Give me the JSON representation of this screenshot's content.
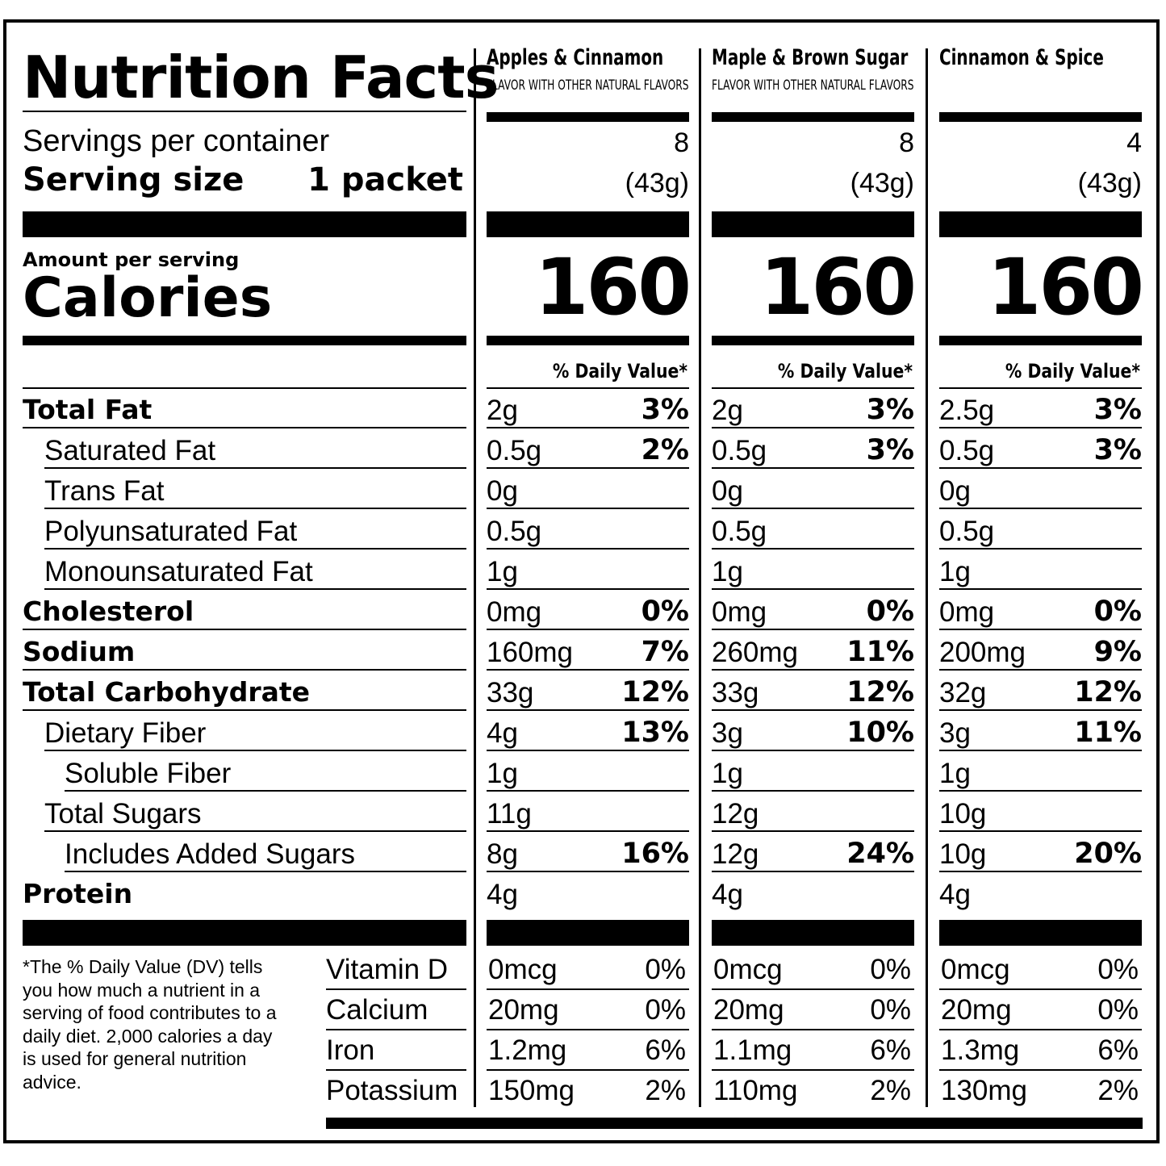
{
  "title": "Nutrition Facts",
  "servings_label": "Servings per container",
  "serving_size_label": "Serving size",
  "serving_size_value": "1 packet",
  "amount_per_serving": "Amount per serving",
  "calories_label": "Calories",
  "daily_value_header": "% Daily Value*",
  "columns": [
    {
      "name": "Apples & Cinnamon",
      "subtitle": "FLAVOR WITH OTHER NATURAL FLAVORS",
      "servings": "8",
      "serving_grams": "(43g)",
      "calories": "160",
      "nutrients": [
        {
          "amount": "2g",
          "dv": "3%"
        },
        {
          "amount": "0.5g",
          "dv": "2%"
        },
        {
          "amount": "0g",
          "dv": ""
        },
        {
          "amount": "0.5g",
          "dv": ""
        },
        {
          "amount": "1g",
          "dv": ""
        },
        {
          "amount": "0mg",
          "dv": "0%"
        },
        {
          "amount": "160mg",
          "dv": "7%"
        },
        {
          "amount": "33g",
          "dv": "12%"
        },
        {
          "amount": "4g",
          "dv": "13%"
        },
        {
          "amount": "1g",
          "dv": ""
        },
        {
          "amount": "11g",
          "dv": ""
        },
        {
          "amount": "8g",
          "dv": "16%"
        },
        {
          "amount": "4g",
          "dv": ""
        }
      ],
      "vitamins": [
        {
          "amount": "0mcg",
          "dv": "0%"
        },
        {
          "amount": "20mg",
          "dv": "0%"
        },
        {
          "amount": "1.2mg",
          "dv": "6%"
        },
        {
          "amount": "150mg",
          "dv": "2%"
        }
      ]
    },
    {
      "name": "Maple & Brown Sugar",
      "subtitle": "FLAVOR WITH OTHER NATURAL FLAVORS",
      "servings": "8",
      "serving_grams": "(43g)",
      "calories": "160",
      "nutrients": [
        {
          "amount": "2g",
          "dv": "3%"
        },
        {
          "amount": "0.5g",
          "dv": "3%"
        },
        {
          "amount": "0g",
          "dv": ""
        },
        {
          "amount": "0.5g",
          "dv": ""
        },
        {
          "amount": "1g",
          "dv": ""
        },
        {
          "amount": "0mg",
          "dv": "0%"
        },
        {
          "amount": "260mg",
          "dv": "11%"
        },
        {
          "amount": "33g",
          "dv": "12%"
        },
        {
          "amount": "3g",
          "dv": "10%"
        },
        {
          "amount": "1g",
          "dv": ""
        },
        {
          "amount": "12g",
          "dv": ""
        },
        {
          "amount": "12g",
          "dv": "24%"
        },
        {
          "amount": "4g",
          "dv": ""
        }
      ],
      "vitamins": [
        {
          "amount": "0mcg",
          "dv": "0%"
        },
        {
          "amount": "20mg",
          "dv": "0%"
        },
        {
          "amount": "1.1mg",
          "dv": "6%"
        },
        {
          "amount": "110mg",
          "dv": "2%"
        }
      ]
    },
    {
      "name": "Cinnamon & Spice",
      "subtitle": "",
      "servings": "4",
      "serving_grams": "(43g)",
      "calories": "160",
      "nutrients": [
        {
          "amount": "2.5g",
          "dv": "3%"
        },
        {
          "amount": "0.5g",
          "dv": "3%"
        },
        {
          "amount": "0g",
          "dv": ""
        },
        {
          "amount": "0.5g",
          "dv": ""
        },
        {
          "amount": "1g",
          "dv": ""
        },
        {
          "amount": "0mg",
          "dv": "0%"
        },
        {
          "amount": "200mg",
          "dv": "9%"
        },
        {
          "amount": "32g",
          "dv": "12%"
        },
        {
          "amount": "3g",
          "dv": "11%"
        },
        {
          "amount": "1g",
          "dv": ""
        },
        {
          "amount": "10g",
          "dv": ""
        },
        {
          "amount": "10g",
          "dv": "20%"
        },
        {
          "amount": "4g",
          "dv": ""
        }
      ],
      "vitamins": [
        {
          "amount": "0mcg",
          "dv": "0%"
        },
        {
          "amount": "20mg",
          "dv": "0%"
        },
        {
          "amount": "1.3mg",
          "dv": "6%"
        },
        {
          "amount": "130mg",
          "dv": "2%"
        }
      ]
    }
  ],
  "nutrient_labels": [
    {
      "label": "Total Fat",
      "bold": true,
      "indent": 0
    },
    {
      "label": "Saturated Fat",
      "bold": false,
      "indent": 1
    },
    {
      "label": "Trans Fat",
      "bold": false,
      "indent": 1
    },
    {
      "label": "Polyunsaturated Fat",
      "bold": false,
      "indent": 1
    },
    {
      "label": "Monounsaturated Fat",
      "bold": false,
      "indent": 1
    },
    {
      "label": "Cholesterol",
      "bold": true,
      "indent": 0
    },
    {
      "label": "Sodium",
      "bold": true,
      "indent": 0
    },
    {
      "label": "Total Carbohydrate",
      "bold": true,
      "indent": 0
    },
    {
      "label": "Dietary Fiber",
      "bold": false,
      "indent": 1
    },
    {
      "label": "Soluble Fiber",
      "bold": false,
      "indent": 2
    },
    {
      "label": "Total Sugars",
      "bold": false,
      "indent": 1
    },
    {
      "label": "Includes Added Sugars",
      "bold": false,
      "indent": 2
    },
    {
      "label": "Protein",
      "bold": true,
      "indent": 0
    }
  ],
  "vitamin_labels": [
    "Vitamin D",
    "Calcium",
    "Iron",
    "Potassium"
  ],
  "footnote": "*The % Daily Value (DV) tells you how much a nutrient in a serving of food contributes to a daily diet. 2,000 calories a day is used for general nutrition advice."
}
